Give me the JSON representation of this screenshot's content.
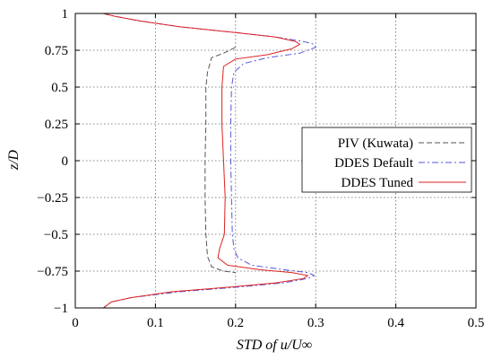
{
  "chart_data": {
    "type": "line",
    "xlabel": "STD of u/U∞",
    "ylabel": "z/D",
    "xlim": [
      0,
      0.5
    ],
    "ylim": [
      -1,
      1
    ],
    "xticks": [
      0,
      0.1,
      0.2,
      0.3,
      0.4,
      0.5
    ],
    "xtick_labels": [
      "0",
      "0.1",
      "0.2",
      "0.3",
      "0.4",
      "0.5"
    ],
    "yticks": [
      -1,
      -0.75,
      -0.5,
      -0.25,
      0,
      0.25,
      0.5,
      0.75,
      1
    ],
    "ytick_labels": [
      "−1",
      "−0.75",
      "−0.5",
      "−0.25",
      "0",
      "0.25",
      "0.5",
      "0.75",
      "1"
    ],
    "grid": true,
    "legend_position": "right",
    "series": [
      {
        "name": "PIV (Kuwata)",
        "color": "#555555",
        "dash": "6,3",
        "points": [
          [
            0.2,
            0.77
          ],
          [
            0.185,
            0.73
          ],
          [
            0.17,
            0.7
          ],
          [
            0.165,
            0.6
          ],
          [
            0.163,
            0.5
          ],
          [
            0.163,
            0.25
          ],
          [
            0.162,
            0.0
          ],
          [
            0.162,
            -0.25
          ],
          [
            0.163,
            -0.5
          ],
          [
            0.165,
            -0.65
          ],
          [
            0.17,
            -0.72
          ],
          [
            0.185,
            -0.75
          ],
          [
            0.2,
            -0.76
          ]
        ]
      },
      {
        "name": "DDES Default",
        "color": "#5555dd",
        "dash": "7,3,2,3",
        "points": [
          [
            0.035,
            1.0
          ],
          [
            0.05,
            0.98
          ],
          [
            0.08,
            0.95
          ],
          [
            0.13,
            0.91
          ],
          [
            0.2,
            0.87
          ],
          [
            0.25,
            0.84
          ],
          [
            0.285,
            0.81
          ],
          [
            0.298,
            0.79
          ],
          [
            0.3,
            0.77
          ],
          [
            0.28,
            0.73
          ],
          [
            0.24,
            0.7
          ],
          [
            0.21,
            0.66
          ],
          [
            0.198,
            0.6
          ],
          [
            0.195,
            0.5
          ],
          [
            0.194,
            0.25
          ],
          [
            0.194,
            0.0
          ],
          [
            0.195,
            -0.25
          ],
          [
            0.196,
            -0.5
          ],
          [
            0.198,
            -0.6
          ],
          [
            0.203,
            -0.66
          ],
          [
            0.22,
            -0.71
          ],
          [
            0.26,
            -0.74
          ],
          [
            0.29,
            -0.76
          ],
          [
            0.298,
            -0.78
          ],
          [
            0.29,
            -0.8
          ],
          [
            0.26,
            -0.83
          ],
          [
            0.2,
            -0.86
          ],
          [
            0.13,
            -0.89
          ],
          [
            0.07,
            -0.93
          ],
          [
            0.045,
            -0.96
          ],
          [
            0.035,
            -1.0
          ]
        ]
      },
      {
        "name": "DDES Tuned",
        "color": "#dd2222",
        "dash": "",
        "points": [
          [
            0.035,
            1.0
          ],
          [
            0.05,
            0.98
          ],
          [
            0.08,
            0.95
          ],
          [
            0.13,
            0.91
          ],
          [
            0.2,
            0.87
          ],
          [
            0.25,
            0.84
          ],
          [
            0.275,
            0.81
          ],
          [
            0.28,
            0.79
          ],
          [
            0.27,
            0.76
          ],
          [
            0.24,
            0.72
          ],
          [
            0.2,
            0.69
          ],
          [
            0.185,
            0.64
          ],
          [
            0.183,
            0.5
          ],
          [
            0.183,
            0.25
          ],
          [
            0.185,
            0.0
          ],
          [
            0.187,
            -0.25
          ],
          [
            0.186,
            -0.5
          ],
          [
            0.18,
            -0.6
          ],
          [
            0.178,
            -0.66
          ],
          [
            0.19,
            -0.71
          ],
          [
            0.23,
            -0.74
          ],
          [
            0.27,
            -0.76
          ],
          [
            0.29,
            -0.78
          ],
          [
            0.285,
            -0.8
          ],
          [
            0.25,
            -0.83
          ],
          [
            0.19,
            -0.86
          ],
          [
            0.12,
            -0.89
          ],
          [
            0.07,
            -0.93
          ],
          [
            0.045,
            -0.96
          ],
          [
            0.035,
            -1.0
          ]
        ]
      }
    ]
  }
}
